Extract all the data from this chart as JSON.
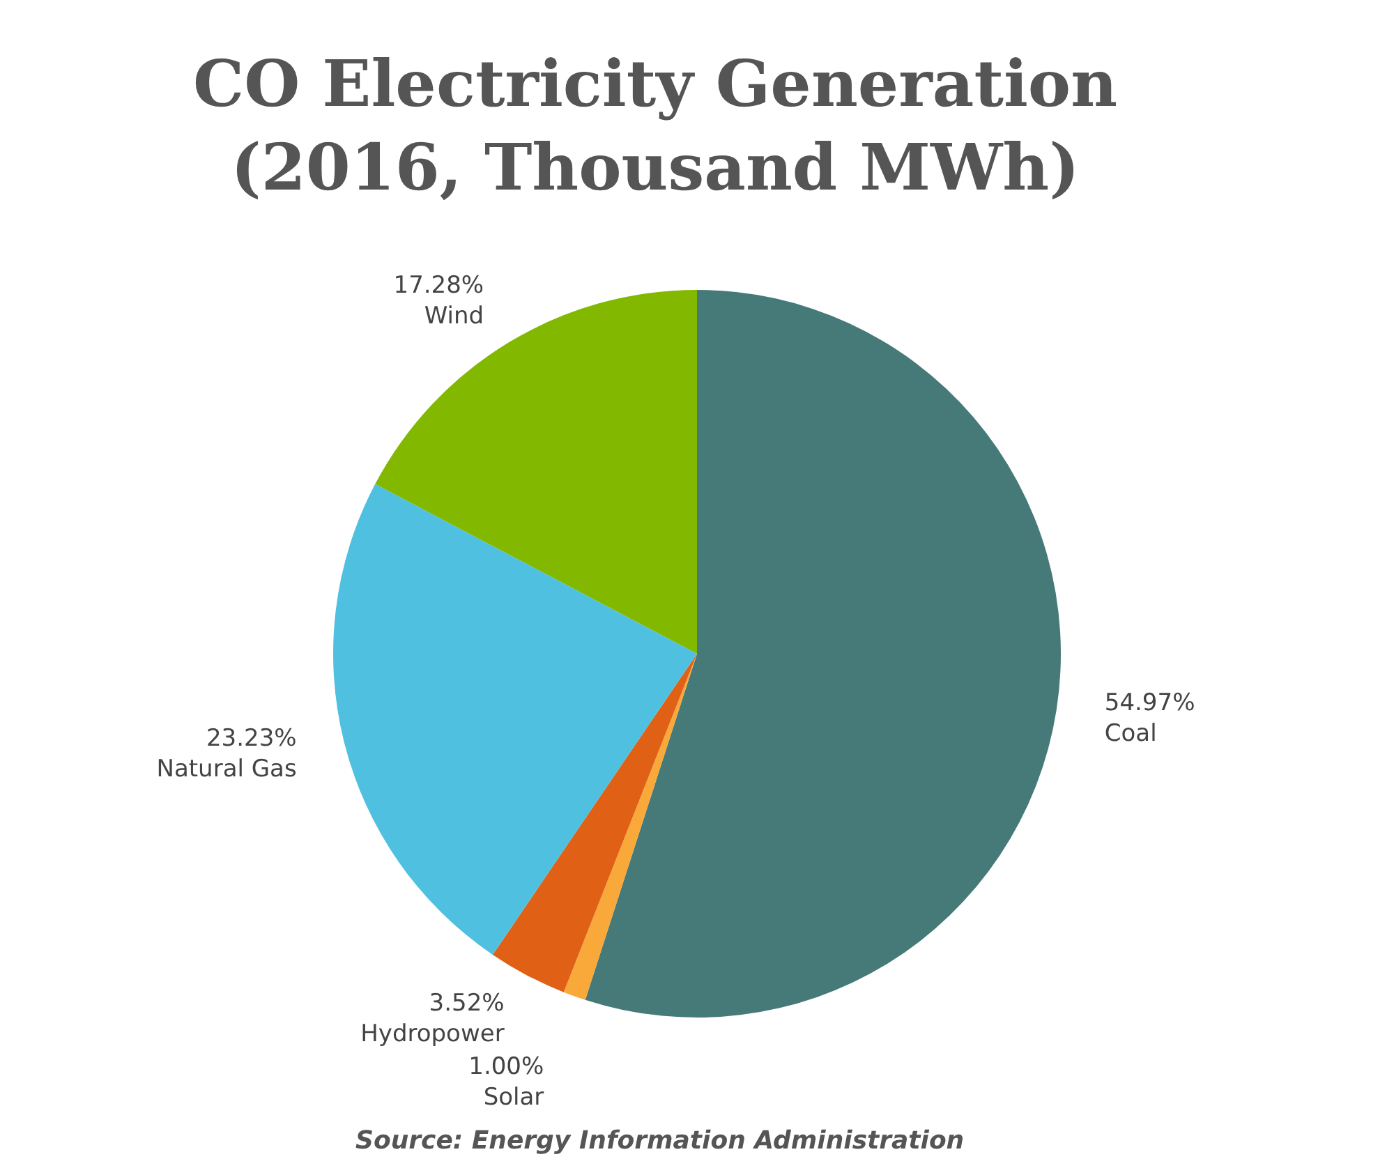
{
  "chart_data": {
    "type": "pie",
    "title": "CO Electricity Generation\n(2016, Thousand MWh)",
    "categories": [
      "Coal",
      "Solar",
      "Hydropower",
      "Natural Gas",
      "Wind"
    ],
    "values": [
      54.97,
      1.0,
      3.52,
      23.23,
      17.28
    ],
    "value_labels": [
      "54.97%",
      "1.00%",
      "3.52%",
      "23.23%",
      "17.28%"
    ],
    "colors": [
      "#467a78",
      "#f9a93a",
      "#e06116",
      "#4fc0e0",
      "#82b800"
    ],
    "legend": false,
    "annotations": [
      "Source: Energy Information Administration"
    ]
  }
}
